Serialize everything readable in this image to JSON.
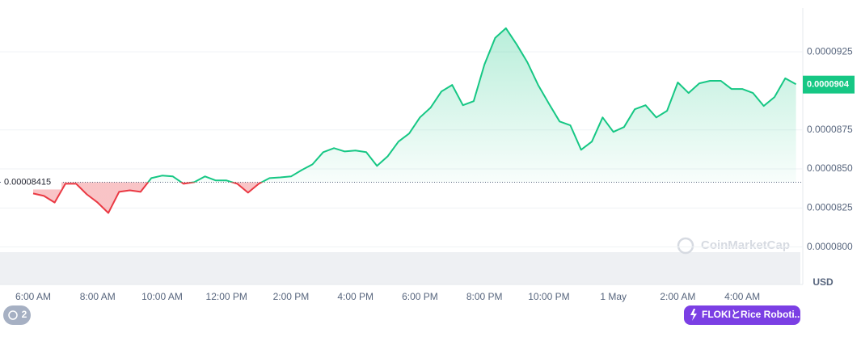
{
  "chart_data": {
    "type": "line",
    "categories": [
      "6:00 AM",
      null,
      null,
      null,
      null,
      null,
      "8:00 AM",
      null,
      null,
      null,
      null,
      null,
      "10:00 AM",
      null,
      null,
      null,
      null,
      null,
      "12:00 PM",
      null,
      null,
      null,
      null,
      null,
      "2:00 PM",
      null,
      null,
      null,
      null,
      null,
      "4:00 PM",
      null,
      null,
      null,
      null,
      null,
      "6:00 PM",
      null,
      null,
      null,
      null,
      null,
      "8:00 PM",
      null,
      null,
      null,
      null,
      null,
      "10:00 PM",
      null,
      null,
      null,
      null,
      null,
      "1 May",
      null,
      null,
      null,
      null,
      null,
      "2:00 AM",
      null,
      null,
      null,
      null,
      null,
      "4:00 AM",
      null,
      null,
      null,
      null,
      null
    ],
    "values": [
      8.343e-05,
      8.327e-05,
      8.285e-05,
      8.405e-05,
      8.405e-05,
      8.337e-05,
      8.285e-05,
      8.218e-05,
      8.353e-05,
      8.363e-05,
      8.353e-05,
      8.441e-05,
      8.457e-05,
      8.452e-05,
      8.405e-05,
      8.415e-05,
      8.452e-05,
      8.426e-05,
      8.426e-05,
      8.405e-05,
      8.348e-05,
      8.405e-05,
      8.441e-05,
      8.446e-05,
      8.452e-05,
      8.493e-05,
      8.529e-05,
      8.607e-05,
      8.633e-05,
      8.612e-05,
      8.618e-05,
      8.607e-05,
      8.519e-05,
      8.581e-05,
      8.675e-05,
      8.727e-05,
      8.83e-05,
      8.893e-05,
      8.996e-05,
      9.038e-05,
      8.908e-05,
      8.934e-05,
      9.168e-05,
      9.339e-05,
      9.401e-05,
      9.298e-05,
      9.183e-05,
      9.038e-05,
      8.919e-05,
      8.804e-05,
      8.779e-05,
      8.623e-05,
      8.675e-05,
      8.83e-05,
      8.737e-05,
      8.768e-05,
      8.882e-05,
      8.908e-05,
      8.83e-05,
      8.872e-05,
      9.054e-05,
      8.986e-05,
      9.048e-05,
      9.064e-05,
      9.064e-05,
      9.012e-05,
      9.012e-05,
      8.986e-05,
      8.903e-05,
      8.96e-05,
      9.08e-05,
      9.042e-05
    ],
    "baseline": 8.415e-05,
    "last_price": 9.04e-05,
    "color_up": "#16c784",
    "color_down": "#ea3943",
    "ylim": [
      7.76e-05,
      9.53e-05
    ],
    "yticks": [
      {
        "value": 8e-05,
        "label": "0.0000800"
      },
      8.25e-05,
      {
        "value": 8.5e-05,
        "label": "0.0000850"
      },
      8.75e-05,
      9.25e-05
    ],
    "grid": true,
    "currency": "USD",
    "watermark": "CoinMarketCap"
  },
  "ui": {
    "history_count": "2",
    "event_label": "FLOKIとRice Roboti..."
  }
}
